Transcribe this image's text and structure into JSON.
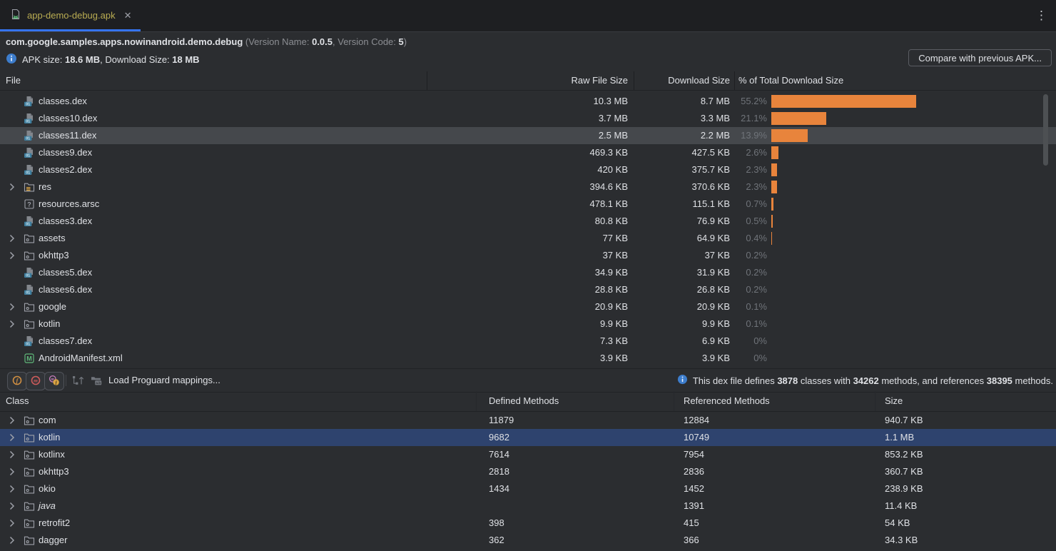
{
  "tab": {
    "title": "app-demo-debug.apk",
    "close_glyph": "✕",
    "kebab_glyph": "⋮"
  },
  "header": {
    "package_name": "com.google.samples.apps.nowinandroid.demo.debug",
    "version_segments": [
      {
        "t": " (Version Name: "
      },
      {
        "t": "0.0.5",
        "b": true
      },
      {
        "t": ", Version Code: "
      },
      {
        "t": "5",
        "b": true
      },
      {
        "t": ")"
      }
    ]
  },
  "apk_info": {
    "size_segments": [
      {
        "t": "APK size: "
      },
      {
        "t": "18.6 MB",
        "b": true
      },
      {
        "t": ", Download Size: "
      },
      {
        "t": "18 MB",
        "b": true
      }
    ],
    "compare_button_label": "Compare with previous APK..."
  },
  "file_table": {
    "columns": {
      "file": "File",
      "raw": "Raw File Size",
      "download": "Download Size",
      "pct": "% of Total Download Size"
    },
    "rows": [
      {
        "icon": "dex",
        "name": "classes.dex",
        "raw": "10.3 MB",
        "download": "8.7 MB",
        "pct": "55.2%",
        "pct_num": 55.2
      },
      {
        "icon": "dex",
        "name": "classes10.dex",
        "raw": "3.7 MB",
        "download": "3.3 MB",
        "pct": "21.1%",
        "pct_num": 21.1
      },
      {
        "icon": "dex",
        "name": "classes11.dex",
        "raw": "2.5 MB",
        "download": "2.2 MB",
        "pct": "13.9%",
        "pct_num": 13.9,
        "selected": true
      },
      {
        "icon": "dex",
        "name": "classes9.dex",
        "raw": "469.3 KB",
        "download": "427.5 KB",
        "pct": "2.6%",
        "pct_num": 2.6
      },
      {
        "icon": "dex",
        "name": "classes2.dex",
        "raw": "420 KB",
        "download": "375.7 KB",
        "pct": "2.3%",
        "pct_num": 2.3
      },
      {
        "icon": "folder-res",
        "name": "res",
        "expand": true,
        "raw": "394.6 KB",
        "download": "370.6 KB",
        "pct": "2.3%",
        "pct_num": 2.3
      },
      {
        "icon": "arsc",
        "name": "resources.arsc",
        "raw": "478.1 KB",
        "download": "115.1 KB",
        "pct": "0.7%",
        "pct_num": 0.7
      },
      {
        "icon": "dex",
        "name": "classes3.dex",
        "raw": "80.8 KB",
        "download": "76.9 KB",
        "pct": "0.5%",
        "pct_num": 0.5
      },
      {
        "icon": "folder",
        "name": "assets",
        "expand": true,
        "raw": "77 KB",
        "download": "64.9 KB",
        "pct": "0.4%",
        "pct_num": 0.4
      },
      {
        "icon": "folder",
        "name": "okhttp3",
        "expand": true,
        "raw": "37 KB",
        "download": "37 KB",
        "pct": "0.2%",
        "pct_num": 0.2
      },
      {
        "icon": "dex",
        "name": "classes5.dex",
        "raw": "34.9 KB",
        "download": "31.9 KB",
        "pct": "0.2%",
        "pct_num": 0.2
      },
      {
        "icon": "dex",
        "name": "classes6.dex",
        "raw": "28.8 KB",
        "download": "26.8 KB",
        "pct": "0.2%",
        "pct_num": 0.2
      },
      {
        "icon": "folder",
        "name": "google",
        "expand": true,
        "raw": "20.9 KB",
        "download": "20.9 KB",
        "pct": "0.1%",
        "pct_num": 0.1
      },
      {
        "icon": "folder",
        "name": "kotlin",
        "expand": true,
        "raw": "9.9 KB",
        "download": "9.9 KB",
        "pct": "0.1%",
        "pct_num": 0.1
      },
      {
        "icon": "dex",
        "name": "classes7.dex",
        "raw": "7.3 KB",
        "download": "6.9 KB",
        "pct": "0%",
        "pct_num": 0
      },
      {
        "icon": "manifest",
        "name": "AndroidManifest.xml",
        "raw": "3.9 KB",
        "download": "3.9 KB",
        "pct": "0%",
        "pct_num": 0
      }
    ]
  },
  "toolbar": {
    "load_label": "Load Proguard mappings...",
    "info_segments": [
      {
        "t": "This dex file defines "
      },
      {
        "t": "3878",
        "b": true
      },
      {
        "t": " classes with "
      },
      {
        "t": "34262",
        "b": true
      },
      {
        "t": " methods, and references "
      },
      {
        "t": "38395",
        "b": true
      },
      {
        "t": " methods."
      }
    ]
  },
  "class_table": {
    "columns": {
      "class": "Class",
      "defined": "Defined Methods",
      "referenced": "Referenced Methods",
      "size": "Size"
    },
    "rows": [
      {
        "name": "com",
        "defined": "11879",
        "referenced": "12884",
        "size": "940.7 KB"
      },
      {
        "name": "kotlin",
        "defined": "9682",
        "referenced": "10749",
        "size": "1.1 MB",
        "selected": true
      },
      {
        "name": "kotlinx",
        "defined": "7614",
        "referenced": "7954",
        "size": "853.2 KB"
      },
      {
        "name": "okhttp3",
        "defined": "2818",
        "referenced": "2836",
        "size": "360.7 KB"
      },
      {
        "name": "okio",
        "defined": "1434",
        "referenced": "1452",
        "size": "238.9 KB"
      },
      {
        "name": "java",
        "italic": true,
        "defined": "",
        "referenced": "1391",
        "size": "11.4 KB"
      },
      {
        "name": "retrofit2",
        "defined": "398",
        "referenced": "415",
        "size": "54 KB"
      },
      {
        "name": "dagger",
        "defined": "362",
        "referenced": "366",
        "size": "34.3 KB"
      }
    ]
  },
  "colors": {
    "bar_orange": "#e8843c",
    "selection_blue": "#2e436e",
    "selection_gray": "#45484c",
    "tab_accent": "#3574f0",
    "tab_title": "#b9ac52"
  }
}
